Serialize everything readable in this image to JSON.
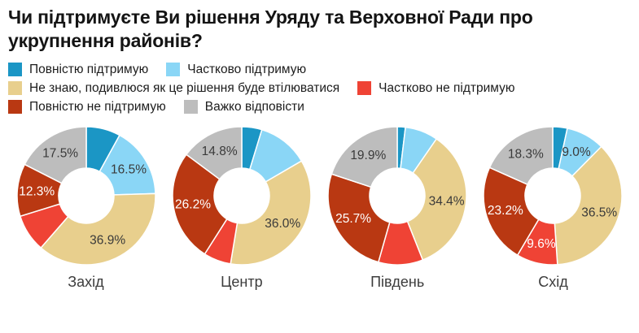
{
  "header": {
    "title": "Чи підтримуєте Ви рішення Уряду та Верховної Ради про укрупнення районів?"
  },
  "chart_data": {
    "type": "pie",
    "variant": "donut",
    "unit": "%",
    "legend_position": "top",
    "categories": [
      "Повністю підтримую",
      "Частково підтримую",
      "Не знаю, подивлюся як це рішення буде втілюватися",
      "Частково не підтримую",
      "Повністю не підтримую",
      "Важко відповісти"
    ],
    "colors": [
      "#1b96c5",
      "#8ad6f6",
      "#e8cf8d",
      "#ef4335",
      "#b93812",
      "#bdbdbd"
    ],
    "charts": [
      {
        "title": "Захід",
        "values": [
          8.0,
          16.5,
          36.9,
          8.8,
          12.3,
          17.5
        ],
        "display_labels": [
          "",
          "16.5%",
          "36.9%",
          "",
          "12.3%",
          "17.5%"
        ]
      },
      {
        "title": "Центр",
        "values": [
          4.7,
          11.9,
          36.0,
          6.4,
          26.2,
          14.8
        ],
        "display_labels": [
          "",
          "",
          "36.0%",
          "",
          "26.2%",
          "14.8%"
        ]
      },
      {
        "title": "Південь",
        "values": [
          1.9,
          7.7,
          34.4,
          10.4,
          25.7,
          19.9
        ],
        "display_labels": [
          "",
          "",
          "34.4%",
          "",
          "25.7%",
          "19.9%"
        ]
      },
      {
        "title": "Схід",
        "values": [
          3.4,
          9.0,
          36.5,
          9.6,
          23.2,
          18.3
        ],
        "display_labels": [
          "",
          "9.0%",
          "36.5%",
          "9.6%",
          "23.2%",
          "18.3%"
        ]
      }
    ],
    "label_text_colors": {
      "dark": "#3a3a3a",
      "light": "#ffffff"
    }
  }
}
